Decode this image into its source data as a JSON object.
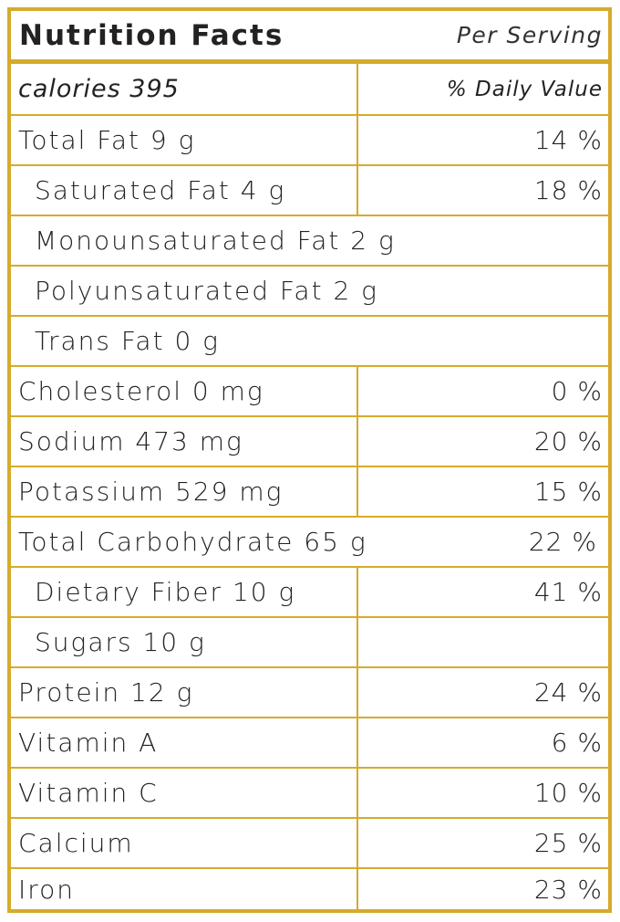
{
  "colors": {
    "border": "#d6ab2a",
    "text": "#222222"
  },
  "header": {
    "title": "Nutrition Facts",
    "per_serving": "Per Serving"
  },
  "subheader": {
    "calories": "calories 395",
    "daily_value": "% Daily Value"
  },
  "rows": [
    {
      "name": "Total Fat 9 g",
      "dv": "14 %"
    },
    {
      "name": "Saturated Fat 4 g",
      "dv": "18 %"
    },
    {
      "name": "Monounsaturated Fat 2 g"
    },
    {
      "name": "Polyunsaturated Fat 2 g"
    },
    {
      "name": "Trans Fat 0 g"
    },
    {
      "name": "Cholesterol 0 mg",
      "dv": "0 %"
    },
    {
      "name": "Sodium 473 mg",
      "dv": "20 %"
    },
    {
      "name": "Potassium 529 mg",
      "dv": "15 %"
    },
    {
      "name": "Total Carbohydrate 65 g",
      "dv": "22 %"
    },
    {
      "name": "Dietary Fiber 10 g",
      "dv": "41 %"
    },
    {
      "name": "Sugars 10 g",
      "dv": ""
    },
    {
      "name": "Protein 12 g",
      "dv": "24 %"
    },
    {
      "name": "Vitamin A",
      "dv": "6 %"
    },
    {
      "name": "Vitamin C",
      "dv": "10 %"
    },
    {
      "name": "Calcium",
      "dv": "25 %"
    },
    {
      "name": "Iron",
      "dv": "23 %"
    }
  ]
}
